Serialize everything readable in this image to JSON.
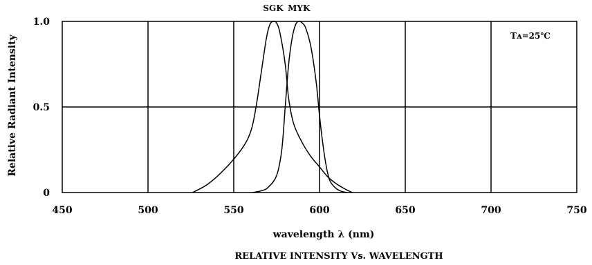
{
  "chart_data": {
    "type": "line",
    "title": "RELATIVE INTENSITY Vs. WAVELENGTH",
    "xlabel": "wavelength  λ (nm)",
    "ylabel": "Relative Radiant Intensity",
    "xlim": [
      450,
      750
    ],
    "ylim": [
      0,
      1.0
    ],
    "x_ticks": [
      {
        "value": 450,
        "label": "450"
      },
      {
        "value": 500,
        "label": "500"
      },
      {
        "value": 550,
        "label": "550"
      },
      {
        "value": 600,
        "label": "600"
      },
      {
        "value": 650,
        "label": "650"
      },
      {
        "value": 700,
        "label": "700"
      },
      {
        "value": 750,
        "label": "750"
      }
    ],
    "y_ticks": [
      {
        "value": 0,
        "label": "0"
      },
      {
        "value": 0.5,
        "label": "0.5"
      },
      {
        "value": 1.0,
        "label": "1.0"
      }
    ],
    "grid": true,
    "annotation": "Tᴀ=25℃",
    "series": [
      {
        "name": "SGK",
        "points": [
          [
            526,
            0
          ],
          [
            535,
            0.05
          ],
          [
            545,
            0.14
          ],
          [
            555,
            0.26
          ],
          [
            560,
            0.36
          ],
          [
            563,
            0.5
          ],
          [
            566,
            0.7
          ],
          [
            569,
            0.9
          ],
          [
            571,
            0.98
          ],
          [
            573,
            1.0
          ],
          [
            575,
            0.99
          ],
          [
            577,
            0.93
          ],
          [
            580,
            0.75
          ],
          [
            582,
            0.55
          ],
          [
            585,
            0.4
          ],
          [
            590,
            0.29
          ],
          [
            595,
            0.21
          ],
          [
            600,
            0.15
          ],
          [
            605,
            0.09
          ],
          [
            610,
            0.05
          ],
          [
            615,
            0.02
          ],
          [
            619,
            0
          ]
        ]
      },
      {
        "name": "MYK",
        "points": [
          [
            561,
            0
          ],
          [
            566,
            0.01
          ],
          [
            570,
            0.03
          ],
          [
            575,
            0.1
          ],
          [
            578,
            0.25
          ],
          [
            580,
            0.5
          ],
          [
            582,
            0.75
          ],
          [
            584,
            0.9
          ],
          [
            586,
            0.98
          ],
          [
            588,
            1.0
          ],
          [
            590,
            0.99
          ],
          [
            592,
            0.96
          ],
          [
            595,
            0.85
          ],
          [
            598,
            0.65
          ],
          [
            600,
            0.45
          ],
          [
            602,
            0.28
          ],
          [
            604,
            0.15
          ],
          [
            606,
            0.07
          ],
          [
            609,
            0.03
          ],
          [
            612,
            0.01
          ],
          [
            616,
            0
          ]
        ]
      }
    ]
  }
}
